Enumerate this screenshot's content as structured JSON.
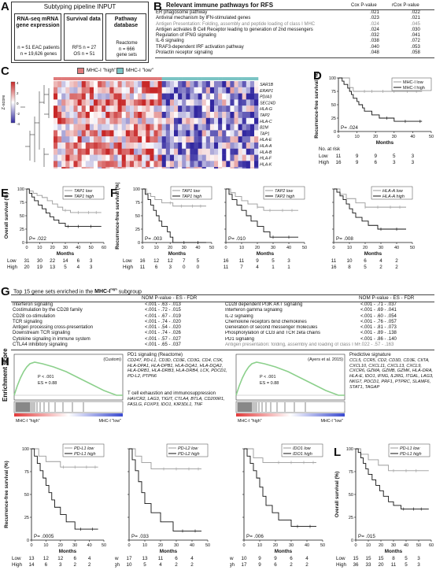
{
  "panelA": {
    "letter": "A",
    "title": "Subtyping pipeline INPUT",
    "box1": {
      "title": "RNA-seq mRNA gene expression",
      "line1": "n = 51 EAC patients",
      "line2": "n = 19,626 genes"
    },
    "box2": {
      "title": "Survival data",
      "line1": "RFS n = 27",
      "line2": "OS n = 51"
    },
    "box3": {
      "title": "Pathway database",
      "line1": "Reactome",
      "line2": "n = 666",
      "line3": "gene sets"
    }
  },
  "panelB": {
    "letter": "B",
    "title": "Relevant immune pathways for RFS",
    "col1_header": "Cox P-value",
    "col2_header": "rCox P-value",
    "rows": [
      {
        "name": "ER phagosome pathway",
        "cox": ".021",
        "rcox": ".022",
        "gray": false
      },
      {
        "name": "Antiviral mechanism by IFN-stimulated genes",
        "cox": ".023",
        "rcox": ".021",
        "gray": false
      },
      {
        "name": "Antigen Presentation: Folding, assembly and peptide loading of class I MHC",
        "cox": ".024",
        "rcox": ".045",
        "gray": true
      },
      {
        "name": "Antigen activates B Cell Receptor leading to generation of 2nd messengers",
        "cox": ".024",
        "rcox": ".030",
        "gray": false
      },
      {
        "name": "Regulation of IFNG signaling",
        "cox": ".032",
        "rcox": ".041",
        "gray": false
      },
      {
        "name": "IL-6 signaling",
        "cox": ".038",
        "rcox": ".072",
        "gray": false
      },
      {
        "name": "TRAF3-dependent IRF activation pathway",
        "cox": ".040",
        "rcox": ".053",
        "gray": false
      },
      {
        "name": "Prolactin receptor signaling",
        "cox": ".048",
        "rcox": ".058",
        "gray": false
      }
    ]
  },
  "panelC": {
    "letter": "C",
    "legend_high": "MHC-I \"high\"",
    "legend_low": "MHC-I \"low\"",
    "zscore_label": "Z-score",
    "ticks": [
      "4",
      "2",
      "0",
      "-2",
      "-4"
    ],
    "genes": [
      "SAR1B",
      "ERAP1",
      "PDIA3",
      "SEC24D",
      "HLA-G",
      "TAP2",
      "HLA-C",
      "B2M",
      "TAP1",
      "HLA-E",
      "HLA-A",
      "HLA-B",
      "HLA-F",
      "HLA-K",
      "SEC23A"
    ],
    "samples": [
      "36",
      "29",
      "16",
      "58",
      "57",
      "1",
      "30",
      "35",
      "17",
      "38",
      "13",
      "41",
      "23",
      "60",
      "63",
      "60",
      "52",
      "46",
      "57",
      "14",
      "4",
      "42",
      "50",
      "61",
      "56",
      "33",
      "10",
      "28",
      "40",
      "27",
      "31",
      "35",
      "34",
      "15",
      "25",
      "18",
      "55",
      "32",
      "3",
      "23",
      "56",
      "50",
      "37",
      "6",
      "51",
      "58",
      "21",
      "24",
      "47",
      "54",
      "48"
    ],
    "n_high": 27,
    "heat_seed": 7
  },
  "panelD": {
    "letter": "D",
    "legend": [
      "MHC-I low",
      "MHC-I high"
    ],
    "ylabel": "Recurrence-free survival (%)",
    "xlabel": "Months",
    "pval": "P= .024",
    "risk_title": "No. at risk",
    "risk": [
      {
        "label": "Low",
        "values": [
          "11",
          "9",
          "9",
          "5",
          "3"
        ]
      },
      {
        "label": "High",
        "values": [
          "16",
          "9",
          "6",
          "3",
          "3"
        ]
      }
    ]
  },
  "panelE": {
    "letter": "E",
    "legend": [
      "TAP1 low",
      "TAP1 high"
    ],
    "ylabel": "Overall survival (%)",
    "xlabel": "Months",
    "pval": "P= .022",
    "risk": [
      {
        "label": "Low",
        "values": [
          "31",
          "30",
          "22",
          "14",
          "6",
          "3"
        ]
      },
      {
        "label": "High",
        "values": [
          "20",
          "19",
          "13",
          "5",
          "4",
          "3"
        ]
      }
    ]
  },
  "panelF": {
    "letter": "F",
    "ylabel": "Recurrence-free survival (%)",
    "xlabel": "Months",
    "plots": [
      {
        "legend": [
          "TAP1 low",
          "TAP1 high"
        ],
        "pval": "P= .003",
        "risk": [
          {
            "label": "Low",
            "values": [
              "16",
              "12",
              "12",
              "7",
              "5"
            ]
          },
          {
            "label": "High",
            "values": [
              "11",
              "6",
              "3",
              "0",
              "0"
            ]
          }
        ]
      },
      {
        "legend": [
          "TAP2 low",
          "TAP2 high"
        ],
        "pval": "P= .010",
        "risk": [
          {
            "label": "Low",
            "values": [
              "16",
              "11",
              "9",
              "5",
              "3"
            ]
          },
          {
            "label": "High",
            "values": [
              "11",
              "7",
              "4",
              "1",
              "1"
            ]
          }
        ]
      },
      {
        "legend": [
          "HLA-A low",
          "HLA-A high"
        ],
        "pval": "P= .008",
        "risk": [
          {
            "label": "Low",
            "values": [
              "11",
              "10",
              "6",
              "4",
              "2"
            ]
          },
          {
            "label": "High",
            "values": [
              "16",
              "8",
              "5",
              "2",
              "2"
            ]
          }
        ]
      }
    ]
  },
  "panelG": {
    "letter": "G",
    "title_pre": "Top 15 gene sets enriched in the ",
    "title_mhc": "MHC-I",
    "title_sup": "high",
    "title_post": " subgroup",
    "header_left": "NOM P-value - ES - FDR",
    "header_right": "NOM P-value - ES - FDR",
    "left": [
      {
        "name": "Interferon signaling",
        "stat": "<.001 - .63 - .013"
      },
      {
        "name": "Costimulation by the CD28 family",
        "stat": "<.001 - .72 - .015"
      },
      {
        "name": "CD28 co-stimulation",
        "stat": "<.001 - .67 - .019"
      },
      {
        "name": "TCR signaling",
        "stat": "<.001 - .74 - .020"
      },
      {
        "name": "Antigen processing cross-presentation",
        "stat": "<.001 - .54 - .020"
      },
      {
        "name": "Downstream TCR signaling",
        "stat": "<.001 - .74 - .026"
      },
      {
        "name": "Cytokine signaling in immune system",
        "stat": "<.001 - .57 - .027"
      },
      {
        "name": "CTLA4 inhibitory signaling",
        "stat": "<.001 - .65 - .037"
      }
    ],
    "right": [
      {
        "name": "CD28 dependent PI3K AKT signaling",
        "stat": "<.001 - .71 - .037",
        "gray": false
      },
      {
        "name": "Interferon gamma signaling",
        "stat": "<.001 - .69 - .041",
        "gray": false
      },
      {
        "name": "IL-2 signaling",
        "stat": "<.001 - .60 - .054",
        "gray": false
      },
      {
        "name": "Chemokine receptors bind chemokines",
        "stat": "<.001 - .76 - .057",
        "gray": false
      },
      {
        "name": "Generation of second messenger molecules",
        "stat": "<.001 - .81 - .073",
        "gray": false
      },
      {
        "name": "Phosphorylation of CD3 and TCR zeta chains",
        "stat": "<.001 - .89 - .138",
        "gray": false
      },
      {
        "name": "PD1 signaling",
        "stat": "<.001 - .86 - .140",
        "gray": false
      },
      {
        "name": "Antigen presentation: folding, assembly and loading of class I MHC",
        "stat": ".022 - .57 - .163",
        "gray": true
      }
    ]
  },
  "panelH": {
    "letter": "H",
    "ylabel": "Enrichment score",
    "plot1": {
      "tag": "(Custom)",
      "pval": "P < .001",
      "es": "ES = 0.88",
      "xl": "MHC-I \"high\"",
      "xr": "MHC-I \"low\""
    },
    "plot2": {
      "tag": "(Ayers et al. 2015)",
      "pval": "P < .001",
      "es": "ES = 0.88",
      "xl": "MHC-I \"high\"",
      "xr": "MHC-I \"low\""
    },
    "genes1_title": "PD1 signaling (Reactome)",
    "genes1": "CD247, PD-L1, CD3D, CD3E, CD3G, CD4, CSK, HLA-DPA1, HLA-DPB1, HLA-DQA1, HLA-DQA2, HLA-DRB1, HLA-DRB3, HLA-DRB4, LCK, PDCD1, PD-L2, PTPN6",
    "genes2_title": "T cell exhaustion and immunosuppression",
    "genes2": "HAVCR2, LAG3, TIGIT, CTLA4, BTLA, CD200R1, FASLG, FOXP3, IDO1, KIR3DL1, TNF",
    "genes3_title": "Predictive signature",
    "genes3": "CCL5, CCR5, CD2, CD3D, CD3E, CIITA, CXCL10, CXCL11, CXCL13, CXCL9, CXCR6, GZMA, GZMB, GZMK, HLA-DRA, HLA-E, IDO1, IFNG, IL2RG, ITGAL, LAG3, NKG7, PDCD1, PRF1, PTPRC, SLAMF6, STAT1, TAGAP"
  },
  "panelI": {
    "ylabel": "Recurrence-free survival (%)",
    "xlabel": "Months",
    "plots": [
      {
        "legend": [
          "PD-L1 low",
          "PD-L1 high"
        ],
        "pval": "P= .0005",
        "risk": [
          {
            "label": "Low",
            "values": [
              "13",
              "12",
              "12",
              "6",
              "4"
            ]
          },
          {
            "label": "High",
            "values": [
              "14",
              "6",
              "3",
              "2",
              "2"
            ]
          }
        ]
      },
      {
        "legend": [
          "PD-L2 low",
          "PD-L2 high"
        ],
        "pval": "P= .033",
        "risk": [
          {
            "label": "Low",
            "values": [
              "17",
              "13",
              "11",
              "6",
              "4"
            ]
          },
          {
            "label": "High",
            "values": [
              "10",
              "5",
              "4",
              "2",
              "2"
            ]
          }
        ]
      },
      {
        "legend": [
          "IDO1 low",
          "IDO1 high"
        ],
        "pval": "P= .006",
        "risk": [
          {
            "label": "Low",
            "values": [
              "10",
              "9",
              "9",
              "6",
              "4"
            ]
          },
          {
            "label": "High",
            "values": [
              "17",
              "9",
              "6",
              "2",
              "2"
            ]
          }
        ]
      }
    ]
  },
  "panelL": {
    "letter": "L",
    "legend": [
      "PD-L1 low",
      "PD-L1 high"
    ],
    "ylabel": "Overall survival (%)",
    "xlabel": "Months",
    "pval": "P= .015",
    "risk": [
      {
        "label": "Low",
        "values": [
          "15",
          "15",
          "15",
          "8",
          "5",
          "3"
        ]
      },
      {
        "label": "High",
        "values": [
          "36",
          "33",
          "20",
          "11",
          "5",
          "3"
        ]
      }
    ]
  },
  "axis": {
    "y_ticks": [
      "0",
      "25",
      "50",
      "75",
      "100"
    ],
    "x_ticks_5": [
      "0",
      "10",
      "20",
      "30",
      "40",
      "50"
    ],
    "x_ticks_6": [
      "0",
      "10",
      "20",
      "30",
      "40",
      "50",
      "60"
    ]
  },
  "colors": {
    "high": "#e07b7b",
    "low": "#7bc4c4",
    "gsea": "#8cd08c"
  }
}
